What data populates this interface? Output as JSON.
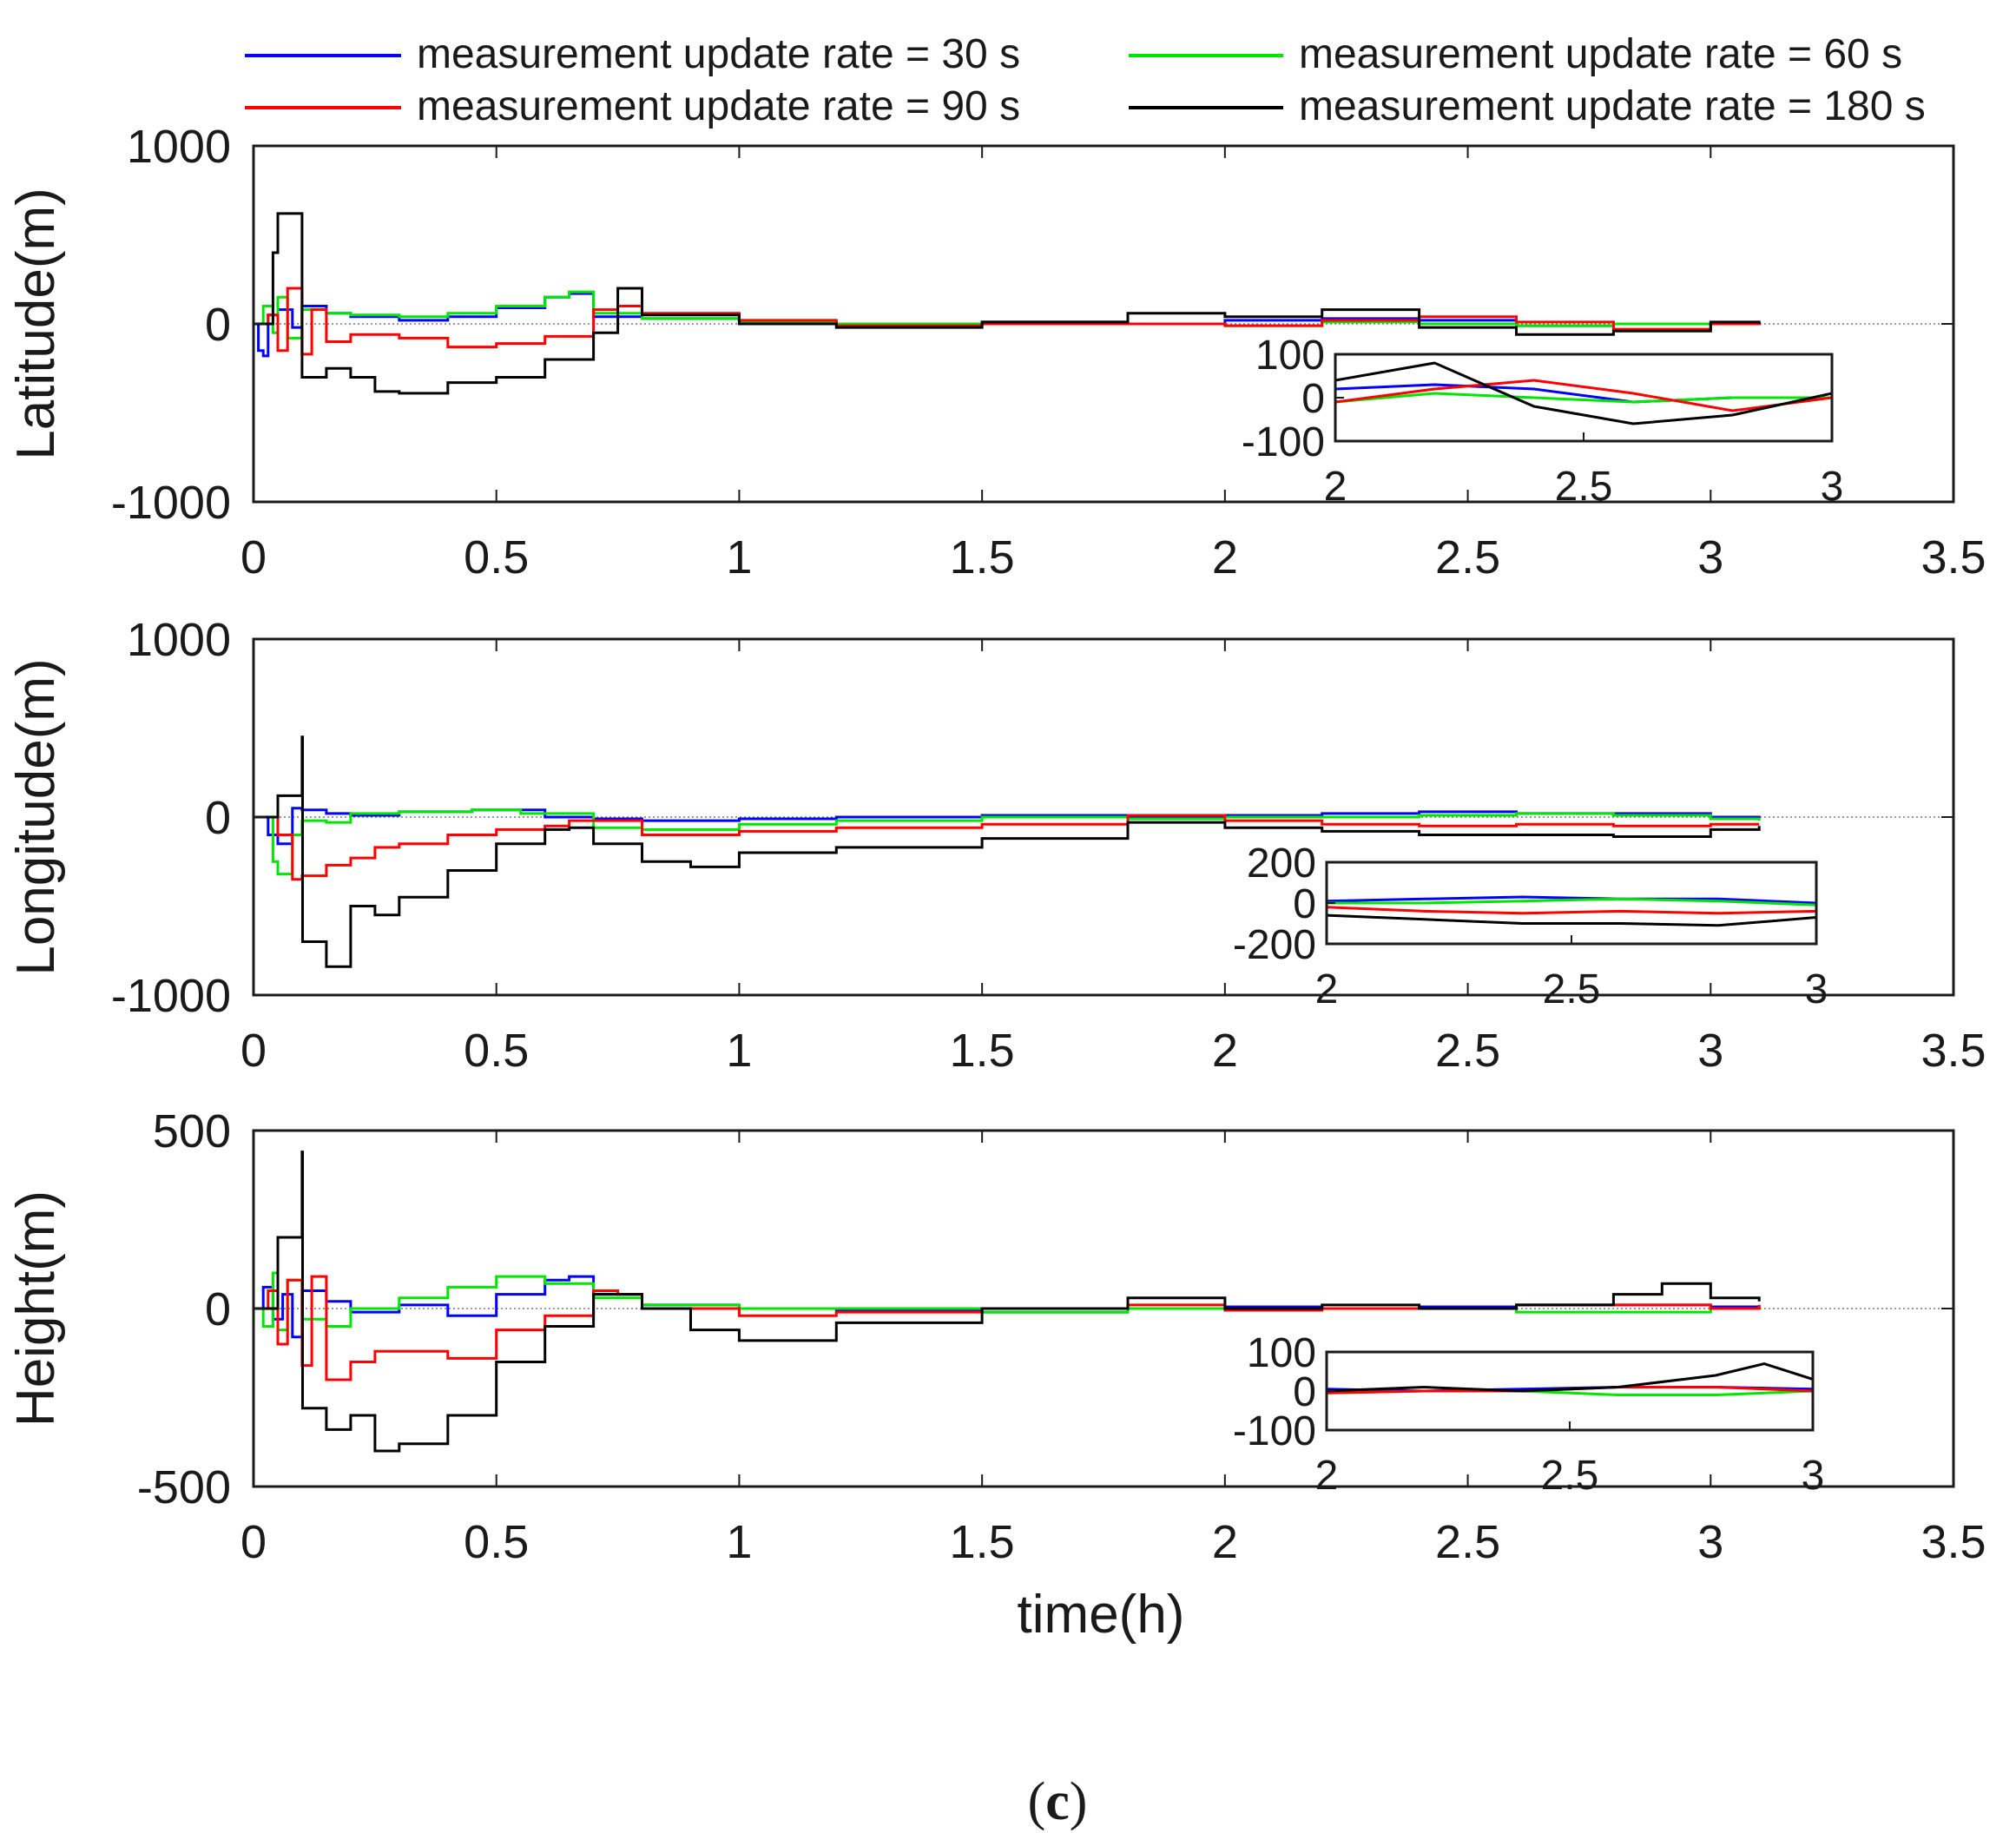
{
  "colors": {
    "rate_30": "#0000ff",
    "rate_60": "#00e600",
    "rate_90": "#ff0000",
    "rate_180": "#000000"
  },
  "legend": [
    {
      "key": "rate_30",
      "label": "measurement update rate = 30 s"
    },
    {
      "key": "rate_60",
      "label": "measurement update rate = 60 s"
    },
    {
      "key": "rate_90",
      "label": "measurement update rate = 90 s"
    },
    {
      "key": "rate_180",
      "label": "measurement update rate = 180 s"
    }
  ],
  "xlabel": "time(h)",
  "caption": {
    "open": "(",
    "letter": "c",
    "close": ")"
  },
  "chart_data": [
    {
      "type": "line",
      "name": "latitude",
      "ylabel": "Latitude(m)",
      "xlim": [
        0,
        3.5
      ],
      "ylim": [
        -1000,
        1000
      ],
      "xticks": [
        "0",
        "0.5",
        "1",
        "1.5",
        "2",
        "2.5",
        "3",
        "3.5"
      ],
      "yticks": [
        "-1000",
        "0",
        "1000"
      ],
      "xtick_values": [
        0,
        0.5,
        1,
        1.5,
        2,
        2.5,
        3,
        3.5
      ],
      "ytick_values": [
        -1000,
        0,
        1000
      ],
      "series": [
        {
          "key": "rate_30",
          "x": [
            0,
            0.01,
            0.02,
            0.03,
            0.05,
            0.08,
            0.1,
            0.15,
            0.2,
            0.3,
            0.4,
            0.5,
            0.6,
            0.65,
            0.7,
            0.8,
            1,
            1.2,
            1.5,
            1.8,
            2,
            2.2,
            2.4,
            2.6,
            2.8,
            3,
            3.1
          ],
          "y": [
            0,
            -150,
            -180,
            50,
            80,
            -20,
            100,
            60,
            40,
            20,
            40,
            90,
            150,
            170,
            40,
            30,
            10,
            0,
            10,
            0,
            20,
            30,
            20,
            -10,
            0,
            0,
            10
          ]
        },
        {
          "key": "rate_60",
          "x": [
            0,
            0.02,
            0.04,
            0.05,
            0.07,
            0.1,
            0.15,
            0.2,
            0.3,
            0.4,
            0.5,
            0.6,
            0.65,
            0.7,
            0.8,
            1,
            1.2,
            1.5,
            1.8,
            2,
            2.2,
            2.4,
            2.6,
            2.8,
            3,
            3.1
          ],
          "y": [
            0,
            100,
            -50,
            150,
            -80,
            80,
            60,
            50,
            40,
            60,
            100,
            150,
            180,
            60,
            30,
            10,
            0,
            10,
            0,
            -10,
            10,
            0,
            -10,
            0,
            0,
            10
          ]
        },
        {
          "key": "rate_90",
          "x": [
            0,
            0.03,
            0.05,
            0.07,
            0.1,
            0.12,
            0.15,
            0.2,
            0.3,
            0.4,
            0.5,
            0.6,
            0.7,
            0.75,
            0.8,
            1,
            1.2,
            1.5,
            1.8,
            2,
            2.2,
            2.4,
            2.6,
            2.8,
            3,
            3.1
          ],
          "y": [
            0,
            50,
            -150,
            200,
            -170,
            80,
            -100,
            -60,
            -80,
            -130,
            -110,
            -70,
            80,
            100,
            60,
            20,
            -10,
            0,
            0,
            -10,
            20,
            40,
            10,
            -30,
            0,
            10
          ]
        },
        {
          "key": "rate_180",
          "x": [
            0,
            0.04,
            0.05,
            0.1,
            0.15,
            0.2,
            0.25,
            0.3,
            0.4,
            0.5,
            0.6,
            0.7,
            0.75,
            0.8,
            1,
            1.2,
            1.5,
            1.8,
            2,
            2.2,
            2.4,
            2.6,
            2.8,
            3,
            3.1
          ],
          "y": [
            0,
            400,
            620,
            -300,
            -250,
            -300,
            -380,
            -390,
            -330,
            -300,
            -200,
            -50,
            200,
            50,
            0,
            -20,
            10,
            60,
            40,
            80,
            -20,
            -60,
            -40,
            10,
            0
          ]
        }
      ],
      "inset": {
        "xlim": [
          2,
          3
        ],
        "ylim": [
          -100,
          100
        ],
        "xticks": [
          "2",
          "2.5",
          "3"
        ],
        "yticks": [
          "-100",
          "0",
          "100"
        ],
        "xtick_values": [
          2,
          2.5,
          3
        ],
        "ytick_values": [
          -100,
          0,
          100
        ]
      }
    },
    {
      "type": "line",
      "name": "longitude",
      "ylabel": "Longitude(m)",
      "xlim": [
        0,
        3.5
      ],
      "ylim": [
        -1000,
        1000
      ],
      "xticks": [
        "0",
        "0.5",
        "1",
        "1.5",
        "2",
        "2.5",
        "3",
        "3.5"
      ],
      "yticks": [
        "-1000",
        "0",
        "1000"
      ],
      "xtick_values": [
        0,
        0.5,
        1,
        1.5,
        2,
        2.5,
        3,
        3.5
      ],
      "ytick_values": [
        -1000,
        0,
        1000
      ],
      "series": [
        {
          "key": "rate_30",
          "x": [
            0,
            0.03,
            0.05,
            0.08,
            0.1,
            0.15,
            0.2,
            0.3,
            0.45,
            0.6,
            0.7,
            0.8,
            1,
            1.2,
            1.5,
            1.8,
            2,
            2.2,
            2.4,
            2.6,
            2.8,
            3,
            3.1
          ],
          "y": [
            0,
            -100,
            -150,
            50,
            40,
            20,
            10,
            30,
            40,
            0,
            -10,
            -20,
            -10,
            0,
            10,
            0,
            10,
            20,
            30,
            20,
            20,
            0,
            -10
          ]
        },
        {
          "key": "rate_60",
          "x": [
            0,
            0.04,
            0.05,
            0.08,
            0.1,
            0.15,
            0.2,
            0.3,
            0.45,
            0.55,
            0.7,
            0.8,
            1,
            1.2,
            1.5,
            1.8,
            2,
            2.2,
            2.4,
            2.6,
            2.8,
            3,
            3.1
          ],
          "y": [
            0,
            -250,
            -320,
            -100,
            -20,
            -30,
            20,
            30,
            40,
            20,
            -60,
            -70,
            -40,
            -20,
            0,
            -10,
            0,
            0,
            10,
            20,
            10,
            -10,
            -20
          ]
        },
        {
          "key": "rate_90",
          "x": [
            0,
            0.05,
            0.08,
            0.1,
            0.15,
            0.2,
            0.25,
            0.3,
            0.4,
            0.5,
            0.6,
            0.65,
            0.8,
            1,
            1.2,
            1.5,
            1.8,
            2,
            2.2,
            2.4,
            2.6,
            2.8,
            3,
            3.1
          ],
          "y": [
            0,
            -100,
            -350,
            -330,
            -270,
            -230,
            -170,
            -150,
            -100,
            -70,
            -50,
            -20,
            -100,
            -80,
            -60,
            -40,
            10,
            -20,
            -40,
            -50,
            -40,
            -50,
            -40,
            -40
          ]
        },
        {
          "key": "rate_180",
          "x": [
            0,
            0.05,
            0.1,
            0.101,
            0.15,
            0.2,
            0.25,
            0.3,
            0.4,
            0.5,
            0.6,
            0.65,
            0.7,
            0.8,
            0.9,
            1,
            1.2,
            1.5,
            1.8,
            2,
            2.2,
            2.4,
            2.6,
            2.8,
            3,
            3.1
          ],
          "y": [
            0,
            120,
            450,
            -700,
            -840,
            -500,
            -550,
            -450,
            -300,
            -150,
            -70,
            -60,
            -150,
            -250,
            -280,
            -200,
            -170,
            -120,
            -30,
            -60,
            -80,
            -100,
            -100,
            -110,
            -70,
            -50
          ]
        }
      ],
      "inset": {
        "xlim": [
          2,
          3
        ],
        "ylim": [
          -200,
          200
        ],
        "xticks": [
          "2",
          "2.5",
          "3"
        ],
        "yticks": [
          "-200",
          "0",
          "200"
        ],
        "xtick_values": [
          2,
          2.5,
          3
        ],
        "ytick_values": [
          -200,
          0,
          200
        ]
      }
    },
    {
      "type": "line",
      "name": "height",
      "ylabel": "Height(m)",
      "xlim": [
        0,
        3.5
      ],
      "ylim": [
        -500,
        500
      ],
      "xticks": [
        "0",
        "0.5",
        "1",
        "1.5",
        "2",
        "2.5",
        "3",
        "3.5"
      ],
      "yticks": [
        "-500",
        "0",
        "500"
      ],
      "xtick_values": [
        0,
        0.5,
        1,
        1.5,
        2,
        2.5,
        3,
        3.5
      ],
      "ytick_values": [
        -500,
        0,
        500
      ],
      "series": [
        {
          "key": "rate_30",
          "x": [
            0,
            0.02,
            0.04,
            0.06,
            0.08,
            0.1,
            0.15,
            0.2,
            0.3,
            0.4,
            0.5,
            0.6,
            0.65,
            0.7,
            0.8,
            1,
            1.2,
            1.5,
            1.8,
            2,
            2.2,
            2.4,
            2.6,
            2.8,
            3,
            3.1
          ],
          "y": [
            0,
            60,
            -30,
            40,
            -80,
            50,
            20,
            -10,
            10,
            -20,
            40,
            80,
            90,
            40,
            10,
            0,
            -5,
            -10,
            0,
            5,
            0,
            5,
            10,
            10,
            5,
            10
          ]
        },
        {
          "key": "rate_60",
          "x": [
            0,
            0.02,
            0.04,
            0.05,
            0.07,
            0.1,
            0.15,
            0.2,
            0.3,
            0.4,
            0.5,
            0.6,
            0.7,
            0.8,
            1,
            1.2,
            1.5,
            1.8,
            2,
            2.2,
            2.4,
            2.6,
            2.8,
            3,
            3.1
          ],
          "y": [
            0,
            -50,
            100,
            -60,
            80,
            -30,
            -50,
            0,
            30,
            60,
            90,
            70,
            30,
            10,
            0,
            0,
            -10,
            0,
            -5,
            0,
            0,
            -10,
            -10,
            0,
            5
          ]
        },
        {
          "key": "rate_90",
          "x": [
            0,
            0.03,
            0.05,
            0.07,
            0.1,
            0.12,
            0.15,
            0.2,
            0.25,
            0.3,
            0.4,
            0.5,
            0.6,
            0.7,
            0.75,
            0.8,
            1,
            1.2,
            1.5,
            1.8,
            2,
            2.2,
            2.4,
            2.6,
            2.8,
            3,
            3.1
          ],
          "y": [
            0,
            50,
            -100,
            80,
            -160,
            90,
            -200,
            -150,
            -120,
            -120,
            -140,
            -60,
            -20,
            50,
            40,
            0,
            -20,
            -10,
            0,
            10,
            -5,
            0,
            0,
            10,
            10,
            0,
            10
          ]
        },
        {
          "key": "rate_180",
          "x": [
            0,
            0.05,
            0.1,
            0.101,
            0.15,
            0.2,
            0.25,
            0.3,
            0.4,
            0.5,
            0.6,
            0.7,
            0.8,
            0.9,
            1,
            1.2,
            1.5,
            1.8,
            2,
            2.2,
            2.4,
            2.6,
            2.8,
            2.9,
            3,
            3.1
          ],
          "y": [
            0,
            200,
            440,
            -280,
            -340,
            -300,
            -400,
            -380,
            -300,
            -150,
            -50,
            40,
            0,
            -60,
            -90,
            -40,
            0,
            30,
            0,
            10,
            0,
            10,
            40,
            70,
            30,
            20
          ]
        }
      ],
      "inset": {
        "xlim": [
          2,
          3
        ],
        "ylim": [
          -100,
          100
        ],
        "xticks": [
          "2",
          "2.5",
          "3"
        ],
        "yticks": [
          "-100",
          "0",
          "100"
        ],
        "xtick_values": [
          2,
          2.5,
          3
        ],
        "ytick_values": [
          -100,
          0,
          100
        ]
      }
    }
  ]
}
